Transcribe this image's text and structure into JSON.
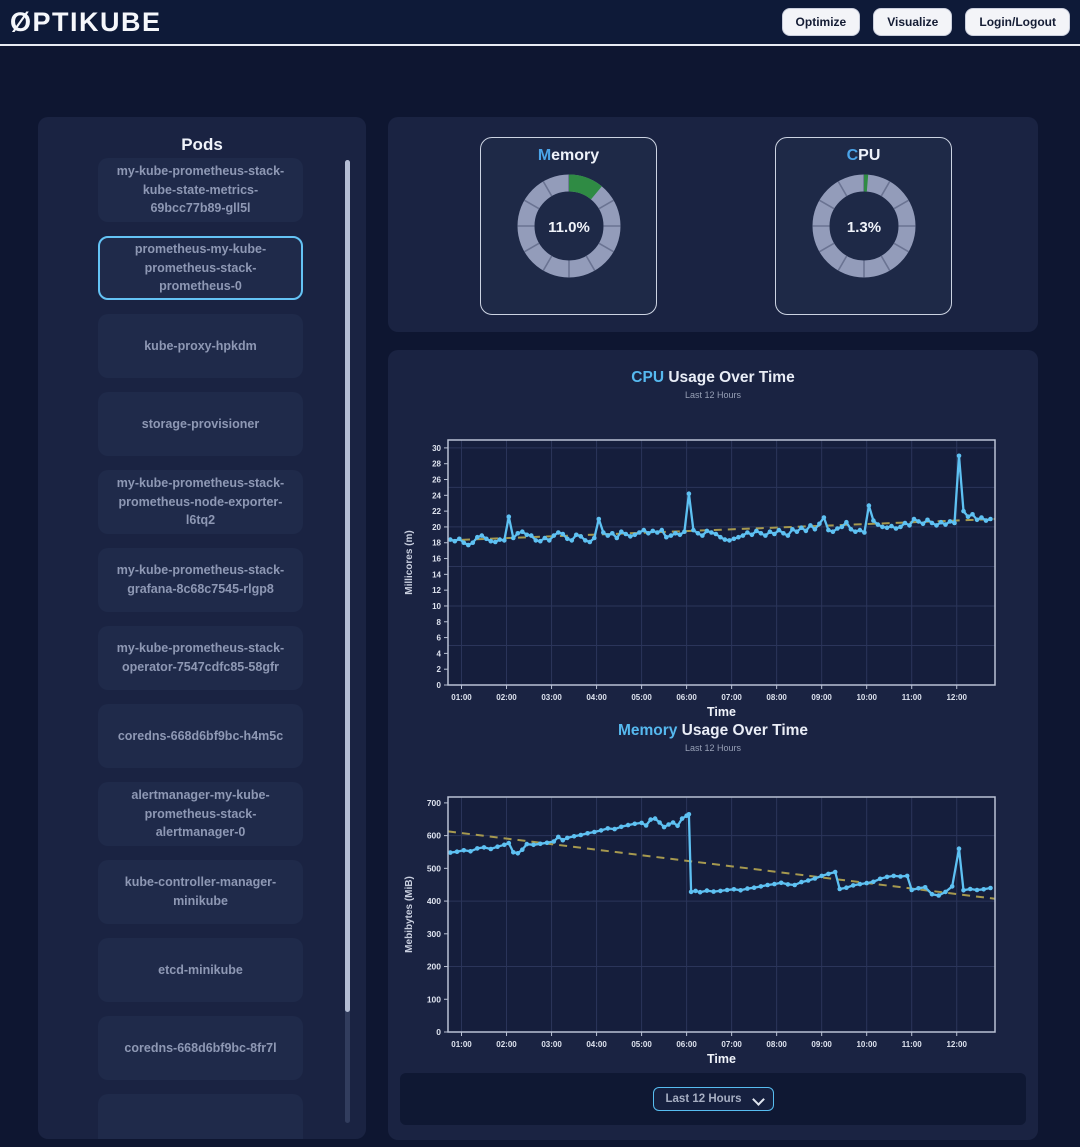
{
  "header": {
    "logo": "ØPTIKUBE",
    "buttons": [
      {
        "label": "Optimize"
      },
      {
        "label": "Visualize"
      },
      {
        "label": "Login/Logout"
      }
    ]
  },
  "sidebar": {
    "title": "Pods",
    "pods": [
      {
        "label": "my-kube-prometheus-stack-kube-state-metrics-69bcc77b89-gll5l",
        "selected": false
      },
      {
        "label": "prometheus-my-kube-prometheus-stack-prometheus-0",
        "selected": true
      },
      {
        "label": "kube-proxy-hpkdm",
        "selected": false
      },
      {
        "label": "storage-provisioner",
        "selected": false
      },
      {
        "label": "my-kube-prometheus-stack-prometheus-node-exporter-l6tq2",
        "selected": false
      },
      {
        "label": "my-kube-prometheus-stack-grafana-8c68c7545-rlgp8",
        "selected": false
      },
      {
        "label": "my-kube-prometheus-stack-operator-7547cdfc85-58gfr",
        "selected": false
      },
      {
        "label": "coredns-668d6bf9bc-h4m5c",
        "selected": false
      },
      {
        "label": "alertmanager-my-kube-prometheus-stack-alertmanager-0",
        "selected": false
      },
      {
        "label": "kube-controller-manager-minikube",
        "selected": false
      },
      {
        "label": "etcd-minikube",
        "selected": false
      },
      {
        "label": "coredns-668d6bf9bc-8fr7l",
        "selected": false
      },
      {
        "label": "",
        "selected": false
      }
    ]
  },
  "gauges": [
    {
      "title_accent": "M",
      "title_rest": "emory",
      "value_label": "11.0%",
      "percent": 11.0
    },
    {
      "title_accent": "C",
      "title_rest": "PU",
      "value_label": "1.3%",
      "percent": 1.3
    }
  ],
  "controls": {
    "time_range_selected": "Last 12 Hours"
  },
  "colors": {
    "accent_blue": "#56b9ef",
    "gauge_green": "#2f8b44",
    "gauge_ring": "#939cba",
    "gauge_tick": "#6a7392",
    "line_blue": "#5ec1f2",
    "trend_khaki": "#a6994f"
  },
  "chart_data": [
    {
      "type": "line",
      "title_accent": "CPU",
      "title_rest": " Usage Over Time",
      "subtitle": "Last 12 Hours",
      "xlabel": "Time",
      "ylabel": "Millicores (m)",
      "ylim": [
        0,
        30
      ],
      "ytick_step": 2,
      "grid_step": 5,
      "xlim": [
        0.7,
        12.85
      ],
      "xticks": [
        1,
        2,
        3,
        4,
        5,
        6,
        7,
        8,
        9,
        10,
        11,
        12
      ],
      "xtick_labels": [
        "01:00",
        "02:00",
        "03:00",
        "04:00",
        "05:00",
        "06:00",
        "07:00",
        "08:00",
        "09:00",
        "10:00",
        "11:00",
        "12:00"
      ],
      "legend": "none",
      "grid": true,
      "series_name": "cpu-usage",
      "line_color": "#5ec1f2",
      "trend_color": "#a6994f",
      "trend": [
        [
          0.7,
          18.3
        ],
        [
          12.85,
          21.0
        ]
      ],
      "points": [
        [
          0.75,
          18.4
        ],
        [
          0.85,
          18.2
        ],
        [
          0.95,
          18.5
        ],
        [
          1.05,
          18.0
        ],
        [
          1.15,
          17.7
        ],
        [
          1.25,
          18.0
        ],
        [
          1.35,
          18.7
        ],
        [
          1.45,
          18.9
        ],
        [
          1.55,
          18.5
        ],
        [
          1.65,
          18.2
        ],
        [
          1.75,
          18.1
        ],
        [
          1.85,
          18.4
        ],
        [
          1.95,
          18.3
        ],
        [
          2.05,
          21.3
        ],
        [
          2.15,
          18.6
        ],
        [
          2.25,
          19.2
        ],
        [
          2.35,
          19.4
        ],
        [
          2.45,
          19.0
        ],
        [
          2.55,
          18.9
        ],
        [
          2.65,
          18.3
        ],
        [
          2.75,
          18.2
        ],
        [
          2.85,
          18.6
        ],
        [
          2.95,
          18.3
        ],
        [
          3.05,
          18.9
        ],
        [
          3.15,
          19.3
        ],
        [
          3.25,
          19.1
        ],
        [
          3.35,
          18.5
        ],
        [
          3.45,
          18.3
        ],
        [
          3.55,
          19.0
        ],
        [
          3.65,
          18.8
        ],
        [
          3.75,
          18.3
        ],
        [
          3.85,
          18.1
        ],
        [
          3.95,
          18.6
        ],
        [
          4.05,
          21.0
        ],
        [
          4.15,
          19.3
        ],
        [
          4.25,
          18.9
        ],
        [
          4.35,
          19.2
        ],
        [
          4.45,
          18.6
        ],
        [
          4.55,
          19.4
        ],
        [
          4.65,
          19.1
        ],
        [
          4.75,
          18.8
        ],
        [
          4.85,
          19.0
        ],
        [
          4.95,
          19.3
        ],
        [
          5.05,
          19.6
        ],
        [
          5.15,
          19.2
        ],
        [
          5.25,
          19.5
        ],
        [
          5.35,
          19.3
        ],
        [
          5.45,
          19.6
        ],
        [
          5.55,
          18.7
        ],
        [
          5.65,
          18.9
        ],
        [
          5.75,
          19.2
        ],
        [
          5.85,
          19.0
        ],
        [
          5.95,
          19.4
        ],
        [
          6.05,
          24.2
        ],
        [
          6.15,
          19.6
        ],
        [
          6.25,
          19.2
        ],
        [
          6.35,
          18.9
        ],
        [
          6.45,
          19.5
        ],
        [
          6.55,
          19.3
        ],
        [
          6.65,
          19.1
        ],
        [
          6.75,
          18.7
        ],
        [
          6.85,
          18.4
        ],
        [
          6.95,
          18.3
        ],
        [
          7.05,
          18.5
        ],
        [
          7.15,
          18.7
        ],
        [
          7.25,
          18.9
        ],
        [
          7.35,
          19.3
        ],
        [
          7.45,
          19.0
        ],
        [
          7.55,
          19.5
        ],
        [
          7.65,
          19.2
        ],
        [
          7.75,
          18.9
        ],
        [
          7.85,
          19.4
        ],
        [
          7.95,
          19.1
        ],
        [
          8.05,
          19.6
        ],
        [
          8.15,
          19.2
        ],
        [
          8.25,
          18.9
        ],
        [
          8.35,
          19.7
        ],
        [
          8.45,
          19.4
        ],
        [
          8.55,
          19.9
        ],
        [
          8.65,
          19.5
        ],
        [
          8.75,
          20.2
        ],
        [
          8.85,
          19.7
        ],
        [
          8.95,
          20.4
        ],
        [
          9.05,
          21.2
        ],
        [
          9.15,
          19.6
        ],
        [
          9.25,
          19.4
        ],
        [
          9.35,
          19.8
        ],
        [
          9.45,
          20.0
        ],
        [
          9.55,
          20.6
        ],
        [
          9.65,
          19.7
        ],
        [
          9.75,
          19.4
        ],
        [
          9.85,
          19.6
        ],
        [
          9.95,
          19.3
        ],
        [
          10.05,
          22.7
        ],
        [
          10.15,
          20.8
        ],
        [
          10.25,
          20.3
        ],
        [
          10.35,
          20.0
        ],
        [
          10.45,
          19.9
        ],
        [
          10.55,
          20.1
        ],
        [
          10.65,
          19.8
        ],
        [
          10.75,
          20.0
        ],
        [
          10.85,
          20.5
        ],
        [
          10.95,
          20.2
        ],
        [
          11.05,
          21.0
        ],
        [
          11.15,
          20.7
        ],
        [
          11.25,
          20.4
        ],
        [
          11.35,
          20.9
        ],
        [
          11.45,
          20.5
        ],
        [
          11.55,
          20.2
        ],
        [
          11.65,
          20.6
        ],
        [
          11.75,
          20.3
        ],
        [
          11.85,
          20.7
        ],
        [
          11.95,
          20.5
        ],
        [
          12.05,
          29.0
        ],
        [
          12.15,
          22.0
        ],
        [
          12.25,
          21.3
        ],
        [
          12.35,
          21.6
        ],
        [
          12.45,
          20.9
        ],
        [
          12.55,
          21.2
        ],
        [
          12.65,
          20.8
        ],
        [
          12.75,
          21.0
        ]
      ]
    },
    {
      "type": "line",
      "title_accent": "Memory",
      "title_rest": " Usage Over Time",
      "subtitle": "Last 12 Hours",
      "xlabel": "Time",
      "ylabel": "Mebibytes (MiB)",
      "ylim": [
        0,
        700
      ],
      "ytick_step": 100,
      "grid_step": 200,
      "xlim": [
        0.7,
        12.85
      ],
      "xticks": [
        1,
        2,
        3,
        4,
        5,
        6,
        7,
        8,
        9,
        10,
        11,
        12
      ],
      "xtick_labels": [
        "01:00",
        "02:00",
        "03:00",
        "04:00",
        "05:00",
        "06:00",
        "07:00",
        "08:00",
        "09:00",
        "10:00",
        "11:00",
        "12:00"
      ],
      "legend": "none",
      "grid": true,
      "series_name": "memory-usage",
      "line_color": "#5ec1f2",
      "trend_color": "#a6994f",
      "trend": [
        [
          0.7,
          613
        ],
        [
          12.85,
          407
        ]
      ],
      "points": [
        [
          0.75,
          548
        ],
        [
          0.9,
          551
        ],
        [
          1.05,
          555
        ],
        [
          1.2,
          552
        ],
        [
          1.35,
          561
        ],
        [
          1.5,
          564
        ],
        [
          1.65,
          559
        ],
        [
          1.8,
          566
        ],
        [
          1.95,
          572
        ],
        [
          2.05,
          577
        ],
        [
          2.15,
          549
        ],
        [
          2.25,
          546
        ],
        [
          2.35,
          557
        ],
        [
          2.45,
          574
        ],
        [
          2.6,
          572
        ],
        [
          2.75,
          575
        ],
        [
          2.9,
          578
        ],
        [
          3.05,
          582
        ],
        [
          3.15,
          596
        ],
        [
          3.25,
          586
        ],
        [
          3.35,
          593
        ],
        [
          3.5,
          598
        ],
        [
          3.65,
          602
        ],
        [
          3.8,
          607
        ],
        [
          3.95,
          611
        ],
        [
          4.1,
          616
        ],
        [
          4.25,
          622
        ],
        [
          4.4,
          620
        ],
        [
          4.55,
          627
        ],
        [
          4.7,
          632
        ],
        [
          4.85,
          636
        ],
        [
          5.0,
          639
        ],
        [
          5.1,
          631
        ],
        [
          5.2,
          649
        ],
        [
          5.3,
          652
        ],
        [
          5.4,
          640
        ],
        [
          5.5,
          626
        ],
        [
          5.6,
          634
        ],
        [
          5.7,
          640
        ],
        [
          5.8,
          630
        ],
        [
          5.9,
          652
        ],
        [
          6.0,
          661
        ],
        [
          6.05,
          665
        ],
        [
          6.1,
          428
        ],
        [
          6.2,
          431
        ],
        [
          6.3,
          427
        ],
        [
          6.45,
          432
        ],
        [
          6.6,
          429
        ],
        [
          6.75,
          431
        ],
        [
          6.9,
          434
        ],
        [
          7.05,
          436
        ],
        [
          7.2,
          433
        ],
        [
          7.35,
          438
        ],
        [
          7.5,
          441
        ],
        [
          7.65,
          445
        ],
        [
          7.8,
          449
        ],
        [
          7.95,
          452
        ],
        [
          8.1,
          456
        ],
        [
          8.25,
          451
        ],
        [
          8.4,
          449
        ],
        [
          8.55,
          458
        ],
        [
          8.7,
          463
        ],
        [
          8.85,
          469
        ],
        [
          9.0,
          477
        ],
        [
          9.15,
          483
        ],
        [
          9.3,
          489
        ],
        [
          9.4,
          437
        ],
        [
          9.55,
          441
        ],
        [
          9.7,
          448
        ],
        [
          9.85,
          452
        ],
        [
          10.0,
          455
        ],
        [
          10.15,
          459
        ],
        [
          10.3,
          468
        ],
        [
          10.45,
          474
        ],
        [
          10.6,
          477
        ],
        [
          10.75,
          475
        ],
        [
          10.9,
          477
        ],
        [
          11.0,
          434
        ],
        [
          11.15,
          439
        ],
        [
          11.3,
          442
        ],
        [
          11.45,
          421
        ],
        [
          11.6,
          417
        ],
        [
          11.75,
          428
        ],
        [
          11.9,
          445
        ],
        [
          12.05,
          560
        ],
        [
          12.15,
          433
        ],
        [
          12.3,
          437
        ],
        [
          12.45,
          434
        ],
        [
          12.6,
          436
        ],
        [
          12.75,
          440
        ]
      ]
    }
  ]
}
